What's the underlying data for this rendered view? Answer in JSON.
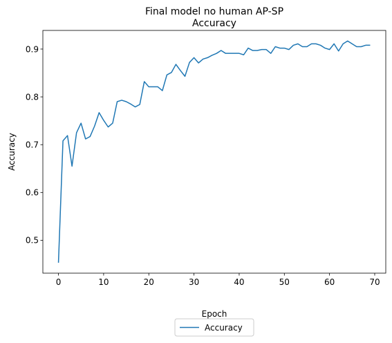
{
  "chart_data": {
    "type": "line",
    "title": "Final model no human AP-SP\nAccuracy",
    "title_lines": [
      "Final model no human AP-SP",
      "Accuracy"
    ],
    "xlabel": "Epoch",
    "ylabel": "Accuracy",
    "xlim": [
      -3.45,
      72.45
    ],
    "ylim": [
      0.4312,
      0.939
    ],
    "xticks": [
      0,
      10,
      20,
      30,
      40,
      50,
      60,
      70
    ],
    "yticks": [
      0.5,
      0.6,
      0.7,
      0.8,
      0.9
    ],
    "ytick_labels": [
      "0.5",
      "0.6",
      "0.7",
      "0.8",
      "0.9"
    ],
    "grid": false,
    "legend_position": "below plot, centered",
    "series": [
      {
        "name": "Accuracy",
        "color": "#1f77b4",
        "x": [
          0,
          1,
          2,
          3,
          4,
          5,
          6,
          7,
          8,
          9,
          10,
          11,
          12,
          13,
          14,
          15,
          16,
          17,
          18,
          19,
          20,
          21,
          22,
          23,
          24,
          25,
          26,
          27,
          28,
          29,
          30,
          31,
          32,
          33,
          34,
          35,
          36,
          37,
          38,
          39,
          40,
          41,
          42,
          43,
          44,
          45,
          46,
          47,
          48,
          49,
          50,
          51,
          52,
          53,
          54,
          55,
          56,
          57,
          58,
          59,
          60,
          61,
          62,
          63,
          64,
          65,
          66,
          67,
          68,
          69
        ],
        "values": [
          0.453,
          0.708,
          0.719,
          0.655,
          0.725,
          0.745,
          0.712,
          0.717,
          0.739,
          0.767,
          0.751,
          0.737,
          0.745,
          0.79,
          0.793,
          0.79,
          0.785,
          0.779,
          0.784,
          0.832,
          0.821,
          0.821,
          0.821,
          0.813,
          0.846,
          0.851,
          0.868,
          0.855,
          0.843,
          0.872,
          0.882,
          0.871,
          0.879,
          0.882,
          0.887,
          0.891,
          0.897,
          0.891,
          0.891,
          0.891,
          0.891,
          0.888,
          0.902,
          0.897,
          0.897,
          0.899,
          0.899,
          0.891,
          0.905,
          0.902,
          0.902,
          0.899,
          0.908,
          0.911,
          0.905,
          0.905,
          0.911,
          0.911,
          0.908,
          0.902,
          0.899,
          0.911,
          0.896,
          0.911,
          0.917,
          0.911,
          0.905,
          0.905,
          0.908,
          0.908
        ]
      }
    ]
  }
}
